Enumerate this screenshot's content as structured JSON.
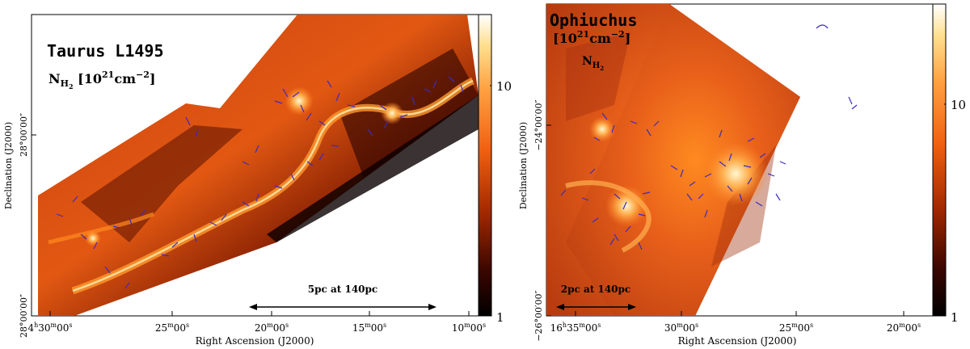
{
  "left_panel": {
    "title": "Taurus L1495",
    "unit_main": "N",
    "unit_sub1": "H",
    "unit_sub2": "2",
    "unit_rest1": " [10",
    "unit_exp": "21",
    "unit_rest2": "cm",
    "unit_exp2": "−2",
    "unit_rest3": "]",
    "ylabel": "Declination (J2000)",
    "xlabel": "Right Ascension (J2000)",
    "xticks": [
      {
        "h": "4",
        "hs": "h",
        "m": "30",
        "ms": "m",
        "s": "00",
        "ss": "s"
      },
      {
        "m": "25",
        "ms": "m",
        "s": "00",
        "ss": "s"
      },
      {
        "m": "20",
        "ms": "m",
        "s": "00",
        "ss": "s"
      },
      {
        "m": "15",
        "ms": "m",
        "s": "00",
        "ss": "s"
      },
      {
        "m": "10",
        "ms": "m",
        "s": "00",
        "ss": "s"
      }
    ],
    "yticks": [
      "28°00′00″",
      "28°00′00″"
    ],
    "scalebar": "5pc at 140pc",
    "colorbar_ticks": [
      "10",
      "1"
    ]
  },
  "right_panel": {
    "title": "Ophiuchus",
    "unit_line": "[10",
    "unit_exp": "21",
    "unit_rest": "cm",
    "unit_exp2": "−2",
    "unit_close": "]",
    "unit_main": "N",
    "unit_sub1": "H",
    "unit_sub2": "2",
    "ylabel": "Declination (J2000)",
    "xlabel": "Right Ascension (J2000)",
    "xticks": [
      {
        "h": "16",
        "hs": "h",
        "m": "35",
        "ms": "m",
        "s": "00",
        "ss": "s"
      },
      {
        "m": "30",
        "ms": "m",
        "s": "00",
        "ss": "s"
      },
      {
        "m": "25",
        "ms": "m",
        "s": "00",
        "ss": "s"
      },
      {
        "m": "20",
        "ms": "m",
        "s": "00",
        "ss": "s"
      }
    ],
    "yticks": [
      "−24°00′00″",
      "−26°00′00″"
    ],
    "scalebar": "2pc at 140pc",
    "colorbar_ticks": [
      "10",
      "1"
    ]
  }
}
